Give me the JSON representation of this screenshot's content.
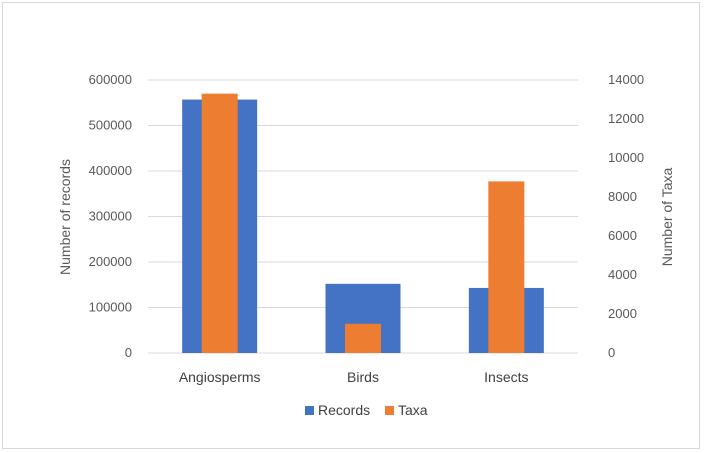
{
  "chart_data": {
    "type": "bar",
    "title": "",
    "categories": [
      "Angiosperms",
      "Birds",
      "Insects"
    ],
    "series": [
      {
        "name": "Records",
        "axis": "left",
        "color": "#4472C4",
        "values": [
          557000,
          152000,
          143000
        ]
      },
      {
        "name": "Taxa",
        "axis": "right",
        "color": "#ED7D31",
        "values": [
          13300,
          1500,
          8800
        ]
      }
    ],
    "y_left": {
      "label": "Number of records",
      "lim": [
        0,
        600000
      ],
      "ticks": [
        "0",
        "100000",
        "200000",
        "300000",
        "400000",
        "500000",
        "600000"
      ]
    },
    "y_right": {
      "label": "Number of Taxa",
      "lim": [
        0,
        14000
      ],
      "ticks": [
        "0",
        "2000",
        "4000",
        "6000",
        "8000",
        "10000",
        "12000",
        "14000"
      ]
    },
    "grid": true,
    "legend": {
      "position": "bottom",
      "entries": [
        "Records",
        "Taxa"
      ]
    }
  }
}
